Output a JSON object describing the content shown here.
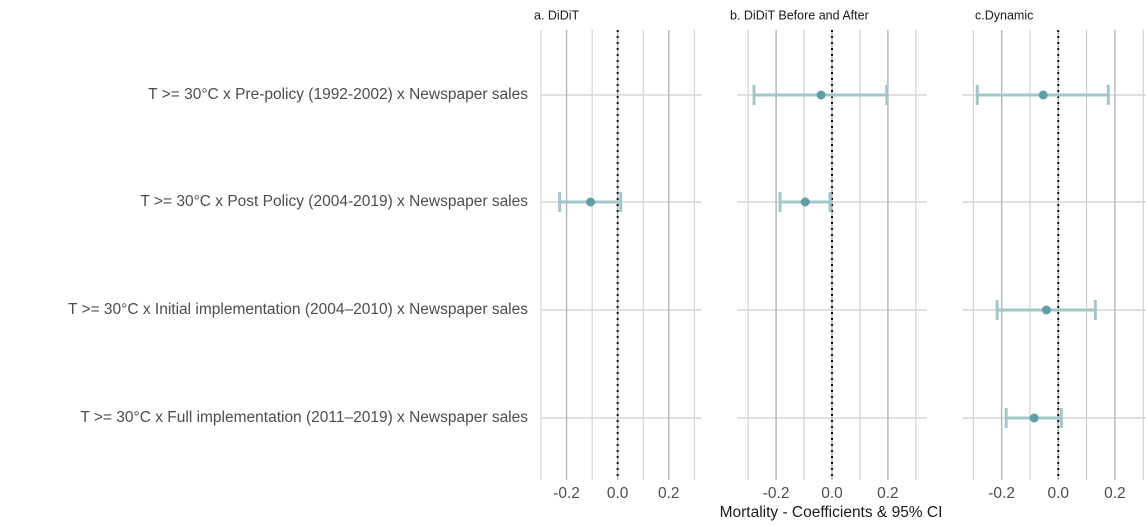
{
  "chart_data": {
    "type": "forest",
    "x_label": "Mortality - Coefficients & 95% CI",
    "categories": [
      "T >= 30°C x Pre-policy (1992-2002) x Newspaper sales",
      "T >= 30°C x  Post Policy (2004-2019) x Newspaper sales",
      "T >= 30°C x Initial implementation (2004–2010) x Newspaper sales",
      "T >= 30°C x Full implementation (2011–2019) x Newspaper sales"
    ],
    "point_color": "#5f9ea6",
    "ci_color": "#a3c6ca",
    "reference_line": 0,
    "grid": true,
    "panels": [
      {
        "title": "a. DiDiT",
        "values": [
          null,
          -0.106,
          null,
          null
        ],
        "lower": [
          null,
          -0.227,
          null,
          null
        ],
        "upper": [
          null,
          0.012,
          null,
          null
        ],
        "xlim": [
          -0.3,
          0.33
        ],
        "xticks": [
          -0.2,
          {
            "value": 0,
            "label": "0.0"
          },
          0.2
        ]
      },
      {
        "title": "b. DiDiT Before and After",
        "values": [
          -0.039,
          -0.096,
          null,
          null
        ],
        "lower": [
          -0.279,
          -0.186,
          null,
          null
        ],
        "upper": [
          0.196,
          -0.007,
          null,
          null
        ],
        "xlim": [
          -0.34,
          0.34
        ],
        "xticks": [
          -0.2,
          {
            "value": 0,
            "label": "0.0"
          },
          0.2
        ]
      },
      {
        "title": "c.Dynamic",
        "values": [
          -0.053,
          null,
          -0.042,
          -0.085
        ],
        "lower": [
          -0.286,
          null,
          -0.216,
          -0.184
        ],
        "upper": [
          0.177,
          null,
          0.131,
          0.011
        ],
        "xlim": [
          -0.34,
          0.31
        ],
        "xticks": [
          -0.2,
          {
            "value": 0,
            "label": "0.0"
          },
          0.2
        ]
      }
    ]
  }
}
